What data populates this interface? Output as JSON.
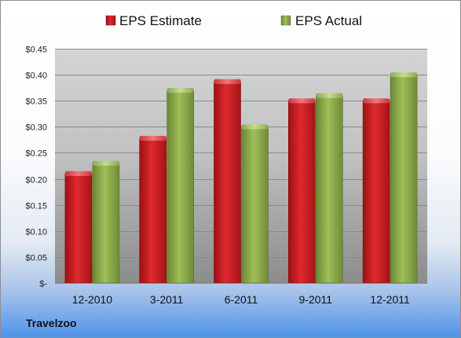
{
  "chart_data": {
    "type": "bar",
    "categories": [
      "12-2010",
      "3-2011",
      "6-2011",
      "9-2011",
      "12-2011"
    ],
    "series": [
      {
        "name": "EPS Estimate",
        "values": [
          0.21,
          0.278,
          0.387,
          0.35,
          0.35
        ],
        "color": "#d0191e"
      },
      {
        "name": "EPS Actual",
        "values": [
          0.23,
          0.37,
          0.3,
          0.36,
          0.4
        ],
        "color": "#8ead49"
      }
    ],
    "ylim": [
      0,
      0.45
    ],
    "yticks": [
      0,
      0.05,
      0.1,
      0.15,
      0.2,
      0.25,
      0.3,
      0.35,
      0.4,
      0.45
    ],
    "ytick_labels": [
      "$-",
      "$0.05",
      "$0.10",
      "$0.15",
      "$0.20",
      "$0.25",
      "$0.30",
      "$0.35",
      "$0.40",
      "$0.45"
    ],
    "grid": true,
    "legend_position": "top"
  },
  "footer": {
    "company": "Travelzoo"
  }
}
